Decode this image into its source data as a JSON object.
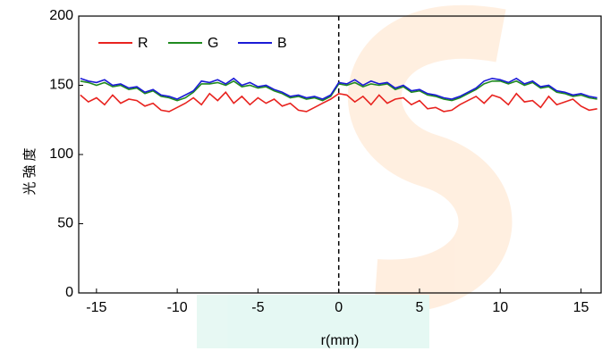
{
  "chart_data": {
    "type": "line",
    "xlabel": "r(mm)",
    "ylabel": "光強度",
    "x": [
      -16,
      -15.5,
      -15,
      -14.5,
      -14,
      -13.5,
      -13,
      -12.5,
      -12,
      -11.5,
      -11,
      -10.5,
      -10,
      -9.5,
      -9,
      -8.5,
      -8,
      -7.5,
      -7,
      -6.5,
      -6,
      -5.5,
      -5,
      -4.5,
      -4,
      -3.5,
      -3,
      -2.5,
      -2,
      -1.5,
      -1,
      -0.5,
      0,
      0.5,
      1,
      1.5,
      2,
      2.5,
      3,
      3.5,
      4,
      4.5,
      5,
      5.5,
      6,
      6.5,
      7,
      7.5,
      8,
      8.5,
      9,
      9.5,
      10,
      10.5,
      11,
      11.5,
      12,
      12.5,
      13,
      13.5,
      14,
      14.5,
      15,
      15.5,
      16
    ],
    "series": [
      {
        "name": "R",
        "color": "#e8231f",
        "values": [
          143,
          138,
          141,
          136,
          143,
          137,
          140,
          139,
          135,
          137,
          132,
          131,
          134,
          137,
          141,
          136,
          144,
          139,
          145,
          137,
          142,
          136,
          141,
          137,
          140,
          135,
          137,
          132,
          131,
          134,
          137,
          140,
          144,
          143,
          138,
          142,
          136,
          143,
          137,
          140,
          141,
          136,
          139,
          133,
          134,
          131,
          132,
          136,
          139,
          142,
          137,
          143,
          141,
          136,
          144,
          138,
          139,
          134,
          142,
          136,
          138,
          140,
          135,
          132,
          133
        ]
      },
      {
        "name": "G",
        "color": "#1f8a1f",
        "values": [
          153,
          152,
          150,
          152,
          149,
          150,
          147,
          148,
          144,
          146,
          142,
          141,
          139,
          141,
          145,
          151,
          151,
          152,
          150,
          153,
          149,
          150,
          148,
          149,
          146,
          144,
          141,
          142,
          140,
          141,
          139,
          142,
          151,
          150,
          152,
          149,
          151,
          150,
          151,
          147,
          149,
          145,
          146,
          143,
          142,
          140,
          139,
          141,
          144,
          147,
          151,
          153,
          153,
          151,
          153,
          150,
          152,
          148,
          149,
          145,
          144,
          142,
          143,
          141,
          140
        ]
      },
      {
        "name": "B",
        "color": "#1a1ad6",
        "values": [
          155,
          153,
          152,
          154,
          150,
          151,
          148,
          149,
          145,
          147,
          143,
          142,
          140,
          143,
          146,
          153,
          152,
          154,
          151,
          155,
          150,
          152,
          149,
          150,
          147,
          145,
          142,
          143,
          141,
          142,
          140,
          143,
          152,
          151,
          154,
          150,
          153,
          151,
          152,
          148,
          150,
          146,
          147,
          144,
          143,
          141,
          140,
          142,
          145,
          148,
          153,
          155,
          154,
          152,
          155,
          151,
          153,
          149,
          150,
          146,
          145,
          143,
          144,
          142,
          141
        ]
      }
    ],
    "xlim": [
      -16.1,
      16.3
    ],
    "ylim": [
      0,
      200
    ],
    "xticks": [
      -15,
      -10,
      -5,
      0,
      5,
      10,
      15
    ],
    "yticks": [
      0,
      50,
      100,
      150,
      200
    ],
    "vline": 0,
    "legend": "upper-left"
  }
}
